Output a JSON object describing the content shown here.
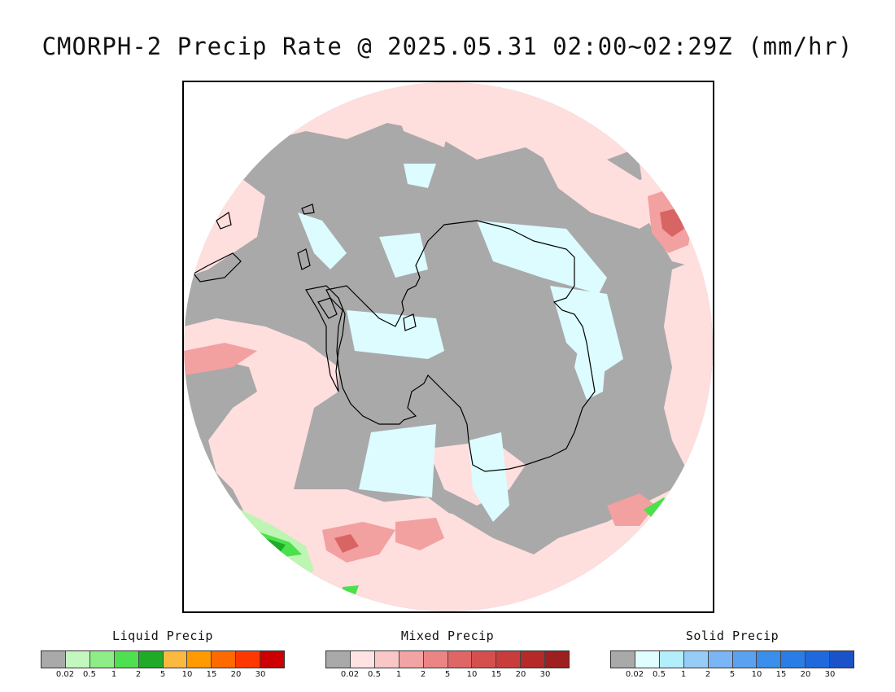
{
  "title": "CMORPH-2 Precip Rate @ 2025.05.31 02:00~02:29Z (mm/hr)",
  "colors": {
    "no_precip": "#a9a9a9",
    "mixed_light": "#ffdede",
    "mixed_mid": "#f2a0a0",
    "mixed_heavy": "#d96464",
    "solid_light": "#dcfcff",
    "liquid_light": "#bdf5b3",
    "liquid_mid": "#4ce04c",
    "liquid_heavy": "#1fab2a",
    "coastline": "#000000"
  },
  "legends": [
    {
      "name": "Liquid Precip",
      "colors": [
        "#a9a9a9",
        "#c3f7bf",
        "#8eed86",
        "#4fe04f",
        "#1fab27",
        "#fbb93f",
        "#ff9a00",
        "#ff6a00",
        "#ff3700",
        "#cc0000"
      ],
      "ticks": [
        "0.02",
        "0.5",
        "1",
        "2",
        "5",
        "10",
        "15",
        "20",
        "30"
      ]
    },
    {
      "name": "Mixed Precip",
      "colors": [
        "#a9a9a9",
        "#ffe3e3",
        "#fbc6c6",
        "#f2a3a3",
        "#eb8585",
        "#e06666",
        "#d64f4f",
        "#c93c3c",
        "#b52929",
        "#9e1f1f"
      ],
      "ticks": [
        "0.02",
        "0.5",
        "1",
        "2",
        "5",
        "10",
        "15",
        "20",
        "30"
      ]
    },
    {
      "name": "Solid Precip",
      "colors": [
        "#a9a9a9",
        "#e0fdff",
        "#b2eefc",
        "#95cdf8",
        "#7ab6f5",
        "#5aa2f0",
        "#3a8eec",
        "#2a7de6",
        "#1f69dc",
        "#1a52c9"
      ],
      "ticks": [
        "0.02",
        "0.5",
        "1",
        "2",
        "5",
        "10",
        "15",
        "20",
        "30"
      ]
    }
  ]
}
